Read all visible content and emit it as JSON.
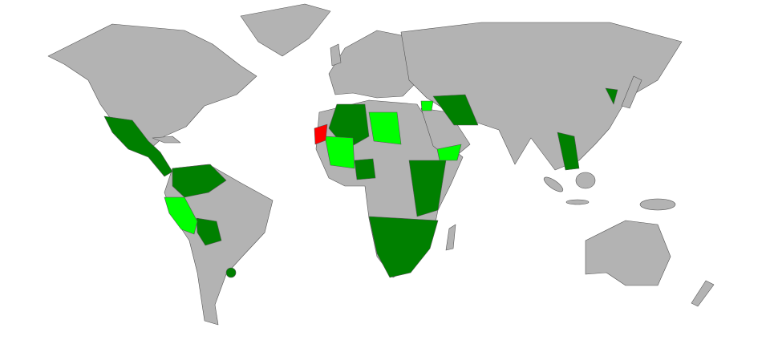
{
  "map": {
    "type": "world-choropleth",
    "colors": {
      "background": "#ffffff",
      "default_land": "#b3b3b3",
      "border": "#555555",
      "category_dark_green": "#008000",
      "category_light_green": "#00ff00",
      "category_red": "#ff0000"
    }
  }
}
